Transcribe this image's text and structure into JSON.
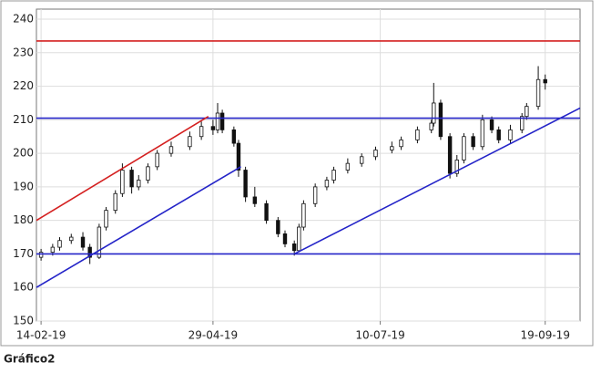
{
  "chart_data": {
    "type": "candlestick",
    "caption": "Gráfico2",
    "x": [
      "2019-02-14",
      "2019-02-19",
      "2019-02-22",
      "2019-02-27",
      "2019-03-04",
      "2019-03-07",
      "2019-03-11",
      "2019-03-14",
      "2019-03-18",
      "2019-03-21",
      "2019-03-25",
      "2019-03-28",
      "2019-04-01",
      "2019-04-05",
      "2019-04-11",
      "2019-04-19",
      "2019-04-24",
      "2019-04-29",
      "2019-05-01",
      "2019-05-03",
      "2019-05-08",
      "2019-05-10",
      "2019-05-13",
      "2019-05-17",
      "2019-05-22",
      "2019-05-27",
      "2019-05-30",
      "2019-06-03",
      "2019-06-05",
      "2019-06-07",
      "2019-06-12",
      "2019-06-17",
      "2019-06-20",
      "2019-06-26",
      "2019-07-02",
      "2019-07-08",
      "2019-07-15",
      "2019-07-19",
      "2019-07-26",
      "2019-08-01",
      "2019-08-02",
      "2019-08-05",
      "2019-08-09",
      "2019-08-12",
      "2019-08-15",
      "2019-08-19",
      "2019-08-23",
      "2019-08-27",
      "2019-08-30",
      "2019-09-04",
      "2019-09-09",
      "2019-09-11",
      "2019-09-16",
      "2019-09-19"
    ],
    "open": [
      169,
      170.5,
      172,
      174,
      175,
      172,
      169,
      178,
      183,
      188,
      195,
      190,
      192,
      196,
      200,
      202,
      205,
      208,
      207,
      212,
      207,
      203,
      195,
      187,
      185,
      180,
      176,
      173,
      171,
      178,
      185,
      190,
      192,
      195,
      197,
      199,
      201,
      202,
      204,
      207,
      209,
      215,
      205,
      194,
      198,
      205,
      202,
      210,
      207,
      204,
      207,
      211,
      214,
      222
    ],
    "high": [
      171.5,
      173,
      175,
      176,
      176.5,
      173,
      179,
      184,
      189,
      197,
      196,
      193.5,
      197,
      201,
      203.5,
      206.5,
      209.5,
      210,
      215,
      213,
      208,
      204,
      196,
      190,
      186,
      181,
      177,
      174,
      179,
      186,
      191,
      193,
      196,
      198.5,
      200,
      202,
      203.5,
      205,
      208,
      210,
      221,
      216,
      206,
      199.5,
      206,
      206,
      211.5,
      211,
      208,
      208.5,
      212,
      215,
      226,
      223.5
    ],
    "low": [
      168,
      169.5,
      171,
      173,
      171,
      167,
      168.5,
      177,
      182,
      187,
      188,
      189,
      191,
      195,
      199,
      201,
      204,
      205.5,
      206,
      206,
      202,
      193,
      185.5,
      184,
      179,
      175,
      172,
      169.5,
      170.5,
      177,
      184,
      189,
      191,
      194,
      196,
      198,
      200,
      201,
      203,
      206,
      208,
      204,
      192.5,
      193,
      197,
      201,
      201,
      206,
      203,
      203,
      206,
      210,
      213,
      219
    ],
    "close": [
      170.5,
      172,
      174,
      175,
      172,
      169,
      178,
      183,
      188,
      195,
      190,
      192,
      196,
      200,
      202,
      205,
      208,
      207,
      212,
      207,
      203,
      195,
      187,
      185,
      180,
      176,
      173,
      171,
      178,
      185,
      190,
      192,
      195,
      197,
      199,
      201,
      202,
      204,
      207,
      209,
      215,
      205,
      194,
      198,
      205,
      202,
      210,
      207,
      204,
      207,
      211,
      214,
      222,
      221
    ],
    "lines": [
      {
        "color": "#d42020",
        "x": [
          "2019-02-12",
          "2019-10-04"
        ],
        "y": [
          233.5,
          233.5
        ]
      },
      {
        "color": "#2424c8",
        "x": [
          "2019-02-12",
          "2019-10-04"
        ],
        "y": [
          210.5,
          210.5
        ]
      },
      {
        "color": "#2424c8",
        "x": [
          "2019-02-12",
          "2019-10-04"
        ],
        "y": [
          170,
          170
        ]
      },
      {
        "color": "#d42020",
        "x": [
          "2019-02-12",
          "2019-04-27"
        ],
        "y": [
          180,
          211
        ]
      },
      {
        "color": "#2424c8",
        "x": [
          "2019-02-12",
          "2019-05-11"
        ],
        "y": [
          160,
          196
        ]
      },
      {
        "color": "#2424c8",
        "x": [
          "2019-06-03",
          "2019-10-04"
        ],
        "y": [
          170,
          213.5
        ]
      }
    ],
    "xlim": [
      "2019-02-12",
      "2019-10-04"
    ],
    "xticks": [
      {
        "value": "2019-02-14",
        "label": "14-02-19"
      },
      {
        "value": "2019-04-29",
        "label": "29-04-19"
      },
      {
        "value": "2019-07-10",
        "label": "10-07-19"
      },
      {
        "value": "2019-09-19",
        "label": "19-09-19"
      }
    ],
    "ylim": [
      150,
      243
    ],
    "yticks": [
      150,
      160,
      170,
      180,
      190,
      200,
      210,
      220,
      230,
      240
    ],
    "grid": true
  }
}
